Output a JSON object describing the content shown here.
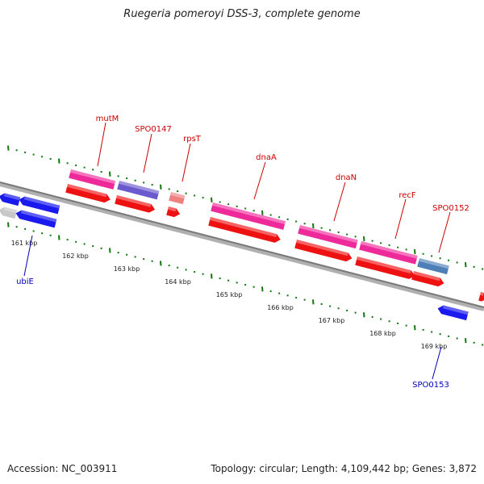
{
  "title": "Ruegeria pomeroyi DSS-3, complete genome",
  "footer": {
    "accession": "Accession: NC_003911",
    "summary": "Topology: circular; Length: 4,109,442 bp; Genes: 3,872"
  },
  "colors": {
    "background": "#ffffff",
    "backbone": "#8c8c8c",
    "tick": "#117711",
    "label_forward": "#cc0000",
    "label_reverse": "#0000bb",
    "feature_pink": "#ee2a9a",
    "feature_red": "#ee1111",
    "feature_purple": "#6a5acd",
    "feature_steel": "#4d7fb8",
    "feature_blue": "#1a1aee",
    "feature_grey": "#c8c8c8",
    "feature_lightred": "#ee8080"
  },
  "scale": {
    "unit": "kbp",
    "ticks": [
      {
        "kbp": 161,
        "label": "161 kbp"
      },
      {
        "kbp": 162,
        "label": "162 kbp"
      },
      {
        "kbp": 163,
        "label": "163 kbp"
      },
      {
        "kbp": 164,
        "label": "164 kbp"
      },
      {
        "kbp": 165,
        "label": "165 kbp"
      },
      {
        "kbp": 166,
        "label": "166 kbp"
      },
      {
        "kbp": 167,
        "label": "167 kbp"
      },
      {
        "kbp": 168,
        "label": "168 kbp"
      },
      {
        "kbp": 169,
        "label": "169 kbp"
      }
    ]
  },
  "gene_labels": [
    {
      "name": "mutM",
      "strand": "forward"
    },
    {
      "name": "SPO0147",
      "strand": "forward"
    },
    {
      "name": "rpsT",
      "strand": "forward"
    },
    {
      "name": "dnaA",
      "strand": "forward"
    },
    {
      "name": "dnaN",
      "strand": "forward"
    },
    {
      "name": "recF",
      "strand": "forward"
    },
    {
      "name": "SPO0152",
      "strand": "forward"
    },
    {
      "name": "ubiE",
      "strand": "reverse"
    },
    {
      "name": "SPO0153",
      "strand": "reverse"
    }
  ]
}
